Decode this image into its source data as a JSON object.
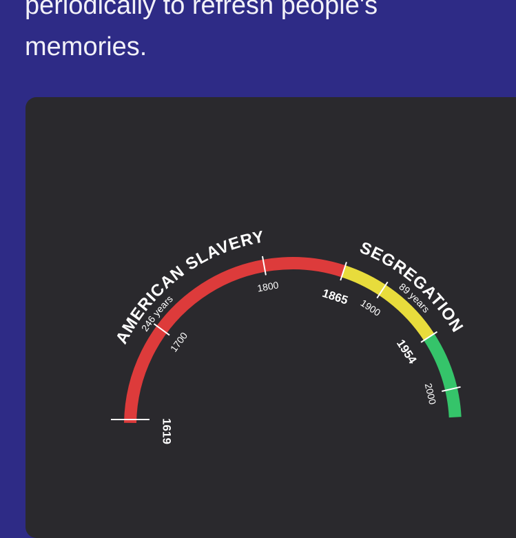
{
  "post": {
    "line1": "periodically to refresh people's",
    "line2": "memories."
  },
  "chart_data": {
    "type": "timeline-gauge",
    "start_year": 1619,
    "end_year": 2023,
    "segments": [
      {
        "name": "AMERICAN SLAVERY",
        "duration_label": "246 years",
        "start": 1619,
        "end": 1865,
        "color": "#dd3b3b"
      },
      {
        "name": "SEGREGATION",
        "duration_label": "89 years",
        "start": 1865,
        "end": 1954,
        "color": "#e8dc3c"
      },
      {
        "name": "",
        "duration_label": "",
        "start": 1954,
        "end": 2023,
        "color": "#35c46a"
      }
    ],
    "ticks": [
      {
        "label": "1619",
        "year": 1619,
        "bold": true
      },
      {
        "label": "1700",
        "year": 1700,
        "bold": false
      },
      {
        "label": "1800",
        "year": 1800,
        "bold": false
      },
      {
        "label": "1865",
        "year": 1865,
        "bold": true
      },
      {
        "label": "1900",
        "year": 1900,
        "bold": false
      },
      {
        "label": "1954",
        "year": 1954,
        "bold": true
      },
      {
        "label": "2000",
        "year": 2000,
        "bold": false
      }
    ]
  }
}
